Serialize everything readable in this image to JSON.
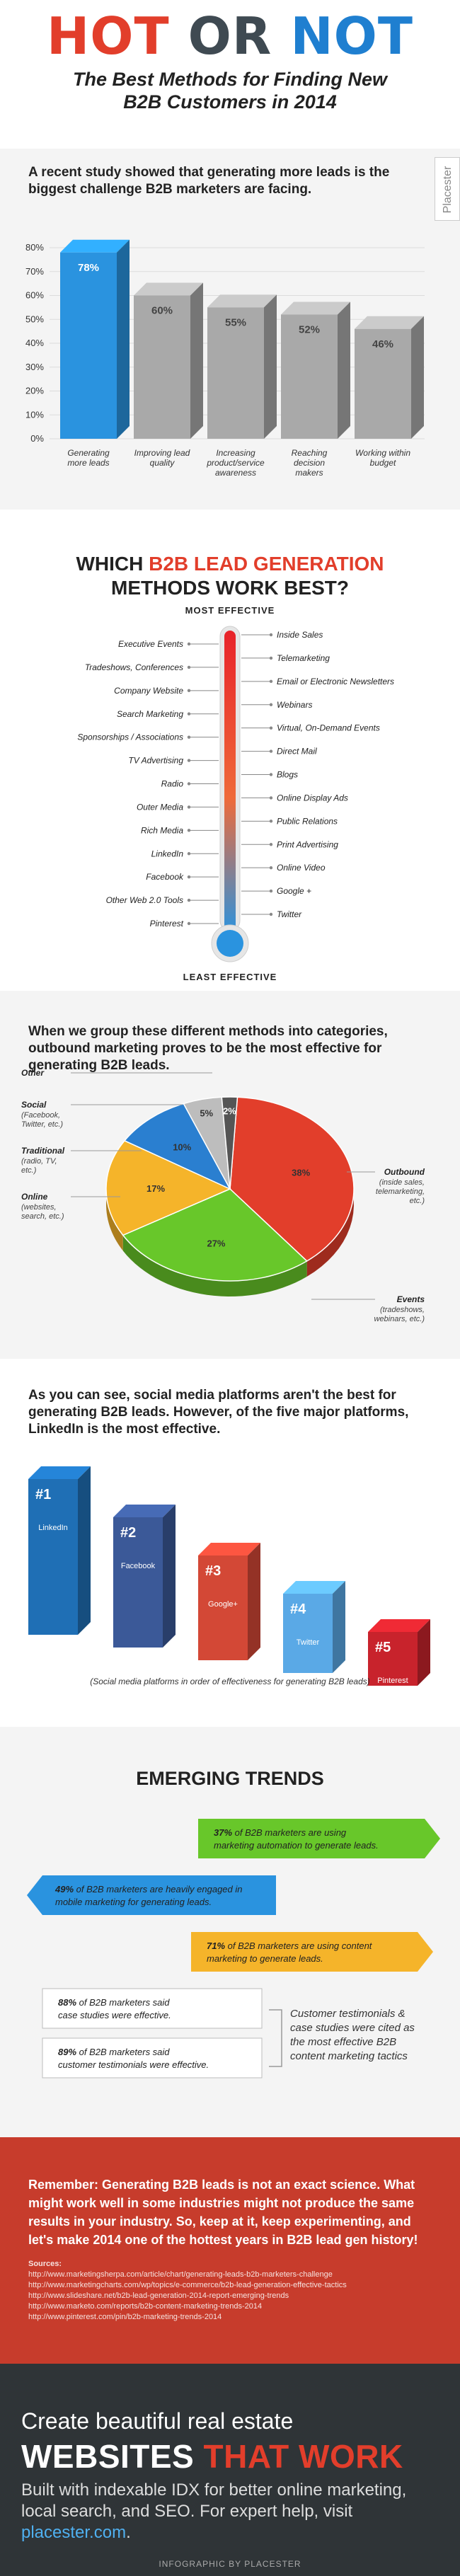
{
  "header": {
    "brand_hot": "HOT",
    "brand_or": "OR",
    "brand_not": "NOT",
    "subtitle_line1": "The Best Methods for Finding New",
    "subtitle_line2": "B2B Customers in 2014"
  },
  "sidebar_tab": "Placester",
  "chart_data": [
    {
      "type": "bar",
      "title": "A recent study showed that generating more leads is the biggest challenge B2B marketers are facing.",
      "categories": [
        "Generating more leads",
        "Improving lead quality",
        "Increasing product/service awareness",
        "Reaching decision makers",
        "Working within budget"
      ],
      "values": [
        78,
        60,
        55,
        52,
        46
      ],
      "ylim": [
        0,
        80
      ],
      "yticks": [
        "0%",
        "10%",
        "20%",
        "30%",
        "40%",
        "50%",
        "60%",
        "70%",
        "80%"
      ],
      "value_labels": [
        "78%",
        "60%",
        "55%",
        "52%",
        "46%"
      ],
      "colors": [
        "#2a93df",
        "#a9a9a9",
        "#a9a9a9",
        "#a9a9a9",
        "#a9a9a9"
      ]
    },
    {
      "type": "pie",
      "title": "When we group these different methods into categories, outbound marketing proves to be the most effective for generating B2B leads.",
      "labels": [
        "Outbound",
        "Events",
        "Online",
        "Traditional",
        "Social",
        "Other"
      ],
      "sublabels": [
        "(inside sales, telemarketing, etc.)",
        "(tradeshows, webinars, etc.)",
        "(websites, search, etc.)",
        "(radio, TV, etc.)",
        "(Facebook, Twitter, etc.)",
        ""
      ],
      "values": [
        38,
        27,
        17,
        10,
        5,
        2
      ],
      "value_labels": [
        "38%",
        "27%",
        "17%",
        "10%",
        "5%",
        "2%"
      ],
      "colors": [
        "#e23e2b",
        "#68c72a",
        "#f5b42a",
        "#2a7fd0",
        "#bdbdbd",
        "#555555"
      ]
    },
    {
      "type": "bar",
      "title": "As you can see, social media platforms aren't the best for generating B2B leads. However, of the five major platforms, LinkedIn is the most effective.",
      "categories": [
        "LinkedIn",
        "Facebook",
        "Google+",
        "Twitter",
        "Pinterest"
      ],
      "ranks": [
        "#1",
        "#2",
        "#3",
        "#4",
        "#5"
      ],
      "values": [
        5,
        4,
        3,
        2,
        1
      ],
      "colors": [
        "#1f6fb5",
        "#3b5998",
        "#d34836",
        "#5aa9e6",
        "#c8232c"
      ],
      "caption": "(Social media platforms in order of effectiveness for generating B2B leads)"
    }
  ],
  "methods": {
    "title_a": "WHICH ",
    "title_hl": "B2B LEAD GENERATION",
    "title_b": "METHODS WORK BEST?",
    "top_label": "MOST EFFECTIVE",
    "bottom_label": "LEAST EFFECTIVE",
    "left": [
      "Executive Events",
      "Tradeshows, Conferences",
      "Company Website",
      "Search Marketing",
      "Sponsorships / Associations",
      "TV Advertising",
      "Radio",
      "Outer Media",
      "Rich Media",
      "LinkedIn",
      "Facebook",
      "Other Web 2.0 Tools",
      "Pinterest"
    ],
    "right": [
      "Inside Sales",
      "Telemarketing",
      "Email or Electronic Newsletters",
      "Webinars",
      "Virtual, On-Demand Events",
      "Direct Mail",
      "Blogs",
      "Online Display Ads",
      "Public Relations",
      "Print Advertising",
      "Online Video",
      "Google +",
      "Twitter"
    ]
  },
  "trends": {
    "title": "EMERGING TRENDS",
    "items": [
      {
        "pct": "37%",
        "text1": "of B2B marketers are using",
        "text2": "marketing automation to generate leads.",
        "color": "#68c72a"
      },
      {
        "pct": "49%",
        "text1": "of B2B marketers are heavily engaged in",
        "text2": "mobile marketing for generating leads.",
        "color": "#2a93df"
      },
      {
        "pct": "71%",
        "text1": "of B2B marketers are using content",
        "text2": "marketing to generate leads.",
        "color": "#f5b42a"
      },
      {
        "pct": "88%",
        "text1": "of B2B marketers said",
        "text2": "case studies were effective.",
        "color": "#ffffff"
      },
      {
        "pct": "89%",
        "text1": "of B2B marketers said",
        "text2": "customer testimonials were effective.",
        "color": "#ffffff"
      }
    ],
    "note": [
      "Customer testimonials &",
      "case studies were cited as",
      "the most effective B2B",
      "content marketing tactics"
    ]
  },
  "closing": {
    "text": "Remember: Generating B2B leads is not an exact science. What might work well in some industries might not produce the same results in your industry. So, keep at it, keep experimenting, and let's make 2014 one of the hottest years in B2B lead gen history!",
    "sources_label": "Sources:",
    "sources": [
      "http://www.marketingsherpa.com/article/chart/generating-leads-b2b-marketers-challenge",
      "http://www.marketingcharts.com/wp/topics/e-commerce/b2b-lead-generation-effective-tactics",
      "http://www.slideshare.net/b2b-lead-generation-2014-report-emerging-trends",
      "http://www.marketo.com/reports/b2b-content-marketing-trends-2014",
      "http://www.pinterest.com/pin/b2b-marketing-trends-2014"
    ]
  },
  "footer": {
    "line1": "Create beautiful real estate",
    "line2a": "WEBSITES ",
    "line2b": "THAT WORK",
    "line3a": "Built with indexable IDX for better online marketing, local search, and SEO. For expert help, visit ",
    "line3link": "placester.com",
    "line3b": ".",
    "credit": "INFOGRAPHIC BY PLACESTER"
  }
}
